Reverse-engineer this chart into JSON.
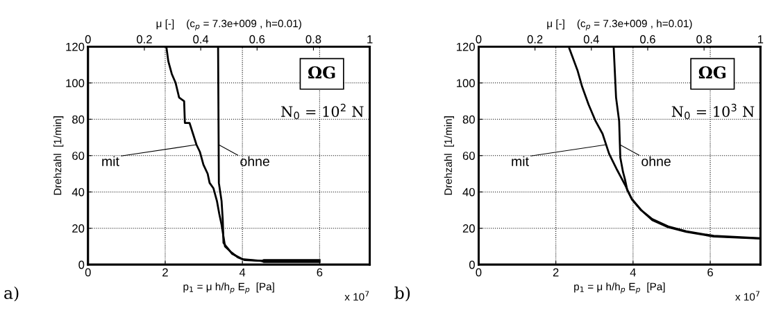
{
  "chart_data": [
    {
      "type": "line",
      "x2label": "μ [-]    (c$_{p}$ = 7.3e+009 , h=0.01)",
      "xlabel": "p$_{1}$ = μ h/h$_{p}$ E$_{p}$  [Pa]",
      "ylabel": "Drehzahl  [1/min]",
      "xlim": [
        0,
        7.3
      ],
      "xticks": [
        0,
        2,
        4,
        6
      ],
      "x2lim": [
        0,
        1
      ],
      "x2ticks": [
        0,
        0.2,
        0.4,
        0.6,
        0.8,
        1
      ],
      "ylim": [
        0,
        120
      ],
      "yticks": [
        0,
        20,
        40,
        60,
        80,
        100,
        120
      ],
      "grid": true,
      "annotations": [
        "ΩG",
        "N$_{0}$ = 10$^{2}$ N",
        "x 10$^{7}$",
        "a)"
      ],
      "series": [
        {
          "name": "mit",
          "color": "#000000",
          "x": [
            2.03,
            2.08,
            2.17,
            2.27,
            2.36,
            2.49,
            2.51,
            2.63,
            2.75,
            2.81,
            2.9,
            2.99,
            3.1,
            3.15,
            3.25,
            3.34,
            3.4,
            3.46,
            3.55,
            3.7,
            3.88,
            4.06,
            4.5,
            4.55,
            6.0
          ],
          "values": [
            120,
            112,
            105,
            100,
            92,
            90,
            78,
            78,
            70,
            66,
            62,
            55,
            50,
            45,
            42,
            35,
            28,
            22,
            10,
            7,
            4,
            2.5,
            2,
            2.5,
            2.5
          ]
        },
        {
          "name": "ohne",
          "color": "#000000",
          "x": [
            3.37,
            3.39,
            3.46,
            3.49,
            3.51,
            3.58,
            3.73,
            4.0,
            4.5,
            4.55,
            6.0
          ],
          "values": [
            120,
            45,
            35,
            25,
            12,
            10,
            6,
            3,
            2,
            1.5,
            1.5
          ]
        }
      ]
    },
    {
      "type": "line",
      "x2label": "μ [-]    (c$_{p}$ = 7.3e+009 , h=0.01)",
      "xlabel": "p$_{1}$ = μ h/h$_{p}$ E$_{p}$  [Pa]",
      "ylabel": "Drehzahl  [1/min]",
      "xlim": [
        0,
        7.3
      ],
      "xticks": [
        0,
        2,
        4,
        6
      ],
      "x2lim": [
        0,
        1
      ],
      "x2ticks": [
        0,
        0.2,
        0.4,
        0.6,
        0.8,
        1
      ],
      "ylim": [
        0,
        120
      ],
      "yticks": [
        0,
        20,
        40,
        60,
        80,
        100,
        120
      ],
      "grid": true,
      "annotations": [
        "ΩG",
        "N$_{0}$ = 10$^{3}$ N",
        "x 10$^{7}$",
        "b)"
      ],
      "series": [
        {
          "name": "mit",
          "color": "#000000",
          "x": [
            2.35,
            2.56,
            2.68,
            2.85,
            3.03,
            3.21,
            3.38,
            3.59,
            3.79,
            3.97,
            4.21,
            4.5,
            4.91,
            5.38,
            6.09,
            7.3
          ],
          "values": [
            119,
            107,
            98,
            88,
            79,
            72,
            61,
            52,
            44,
            36,
            30,
            24.5,
            20.6,
            18,
            15.5,
            14.3
          ]
        },
        {
          "name": "ohne",
          "color": "#000000",
          "x": [
            3.5,
            3.56,
            3.64,
            3.67,
            3.74,
            3.79,
            3.85,
            3.97,
            4.21,
            4.5,
            4.91,
            5.38,
            6.09,
            7.3
          ],
          "values": [
            119,
            92,
            79,
            59,
            51,
            47,
            41,
            36,
            30,
            25,
            21,
            18.3,
            15.8,
            14.5
          ]
        }
      ]
    }
  ]
}
